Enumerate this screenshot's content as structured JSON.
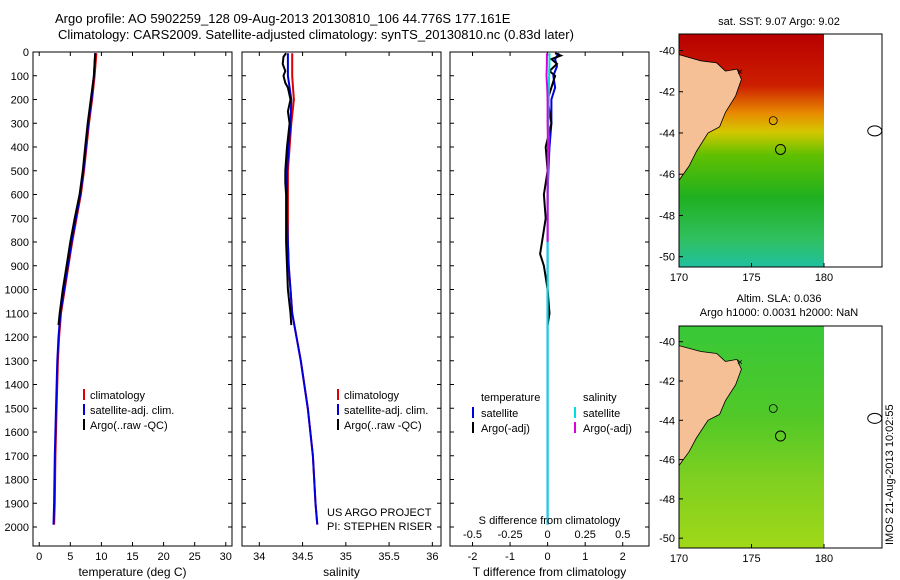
{
  "header": {
    "line1": "Argo profile: AO 5902259_128 09-Aug-2013 20130810_106 44.776S 177.161E",
    "line2": "Climatology: CARS2009. Satellite-adjusted climatology: synTS_20130810.nc (0.83d later)"
  },
  "colors": {
    "climatology": "#dd0000",
    "satellite": "#0000dd",
    "argo": "#000000",
    "sat_salinity": "#00dddd",
    "argo_salinity": "#dd00dd",
    "land": "#f5c096"
  },
  "credits": {
    "project": "US ARGO PROJECT",
    "pi": "PI: STEPHEN RISER",
    "timestamp": "IMOS 21-Aug-2013 10:02:55"
  },
  "chart_data": [
    {
      "type": "line",
      "xlabel": "temperature (deg C)",
      "ylabel": "",
      "xlim": [
        -1,
        31
      ],
      "ylim": [
        2080,
        0
      ],
      "xticks": [
        "0",
        "5",
        "10",
        "15",
        "20",
        "25",
        "30"
      ],
      "yticks": [
        "0",
        "100",
        "200",
        "300",
        "400",
        "500",
        "600",
        "700",
        "800",
        "900",
        "1000",
        "1100",
        "1200",
        "1300",
        "1400",
        "1500",
        "1600",
        "1700",
        "1800",
        "1900",
        "2000"
      ],
      "legend": [
        "climatology",
        "satellite-adj. clim.",
        "Argo(..raw -QC)"
      ],
      "series": [
        {
          "name": "climatology",
          "depth": [
            5,
            100,
            200,
            300,
            400,
            500,
            600,
            700,
            800,
            900,
            1000,
            1100,
            1200,
            1300,
            1500,
            1700,
            1900,
            1990
          ],
          "values": [
            9.2,
            8.9,
            8.5,
            8.0,
            7.6,
            7.2,
            6.7,
            6.0,
            5.3,
            4.7,
            4.1,
            3.5,
            3.2,
            3.0,
            2.8,
            2.6,
            2.5,
            2.4
          ]
        },
        {
          "name": "satellite-adj. clim.",
          "depth": [
            5,
            100,
            200,
            300,
            400,
            500,
            600,
            700,
            800,
            900,
            1000,
            1100,
            1200,
            1300,
            1500,
            1700,
            1900,
            1990
          ],
          "values": [
            9.0,
            8.8,
            8.4,
            7.9,
            7.5,
            7.1,
            6.6,
            5.9,
            5.2,
            4.6,
            4.0,
            3.4,
            3.1,
            2.9,
            2.7,
            2.5,
            2.4,
            2.3
          ]
        },
        {
          "name": "Argo(..raw -QC)",
          "depth": [
            5,
            100,
            200,
            300,
            400,
            500,
            600,
            700,
            800,
            900,
            1000,
            1100,
            1150
          ],
          "values": [
            9.0,
            8.8,
            8.3,
            7.8,
            7.4,
            7.0,
            6.5,
            5.7,
            5.0,
            4.4,
            3.8,
            3.3,
            3.1
          ]
        }
      ]
    },
    {
      "type": "line",
      "xlabel": "salinity",
      "xlim": [
        33.8,
        36.1
      ],
      "ylim": [
        2080,
        0
      ],
      "xticks": [
        "34",
        "34.5",
        "35",
        "35.5",
        "36"
      ],
      "legend": [
        "climatology",
        "satellite-adj. clim.",
        "Argo(..raw -QC)"
      ],
      "series": [
        {
          "name": "climatology",
          "depth": [
            5,
            50,
            100,
            150,
            200,
            300,
            400,
            500,
            600,
            700,
            800,
            900,
            1000,
            1100,
            1200,
            1300,
            1500,
            1700,
            1900,
            1990
          ],
          "values": [
            34.38,
            34.38,
            34.38,
            34.39,
            34.4,
            34.37,
            34.35,
            34.33,
            34.33,
            34.33,
            34.33,
            34.34,
            34.36,
            34.38,
            34.43,
            34.48,
            34.56,
            34.62,
            34.65,
            34.67
          ]
        },
        {
          "name": "satellite-adj. clim.",
          "depth": [
            5,
            50,
            100,
            150,
            200,
            300,
            400,
            500,
            600,
            700,
            800,
            900,
            1000,
            1100,
            1200,
            1300,
            1500,
            1700,
            1900,
            1990
          ],
          "values": [
            34.33,
            34.33,
            34.33,
            34.35,
            34.37,
            34.36,
            34.34,
            34.32,
            34.32,
            34.32,
            34.33,
            34.34,
            34.36,
            34.38,
            34.43,
            34.48,
            34.56,
            34.62,
            34.65,
            34.67
          ]
        },
        {
          "name": "Argo(..raw -QC)",
          "depth": [
            5,
            20,
            50,
            80,
            100,
            130,
            150,
            200,
            250,
            300,
            400,
            500,
            550,
            600,
            700,
            800,
            900,
            1000,
            1100,
            1150
          ],
          "values": [
            34.31,
            34.28,
            34.27,
            34.3,
            34.28,
            34.3,
            34.33,
            34.36,
            34.33,
            34.35,
            34.32,
            34.3,
            34.3,
            34.31,
            34.31,
            34.31,
            34.32,
            34.33,
            34.36,
            34.37
          ]
        }
      ]
    },
    {
      "type": "line",
      "xlabel": "T difference from climatology",
      "xlabel_top": "S difference from climatology",
      "xlim": [
        -2.6,
        2.7
      ],
      "ylim": [
        2080,
        0
      ],
      "xticks": [
        "-2",
        "-1",
        "0",
        "1",
        "2"
      ],
      "xticks_top": [
        "-0.5",
        "-0.25",
        "0",
        "0.25",
        "0.5"
      ],
      "legend_headers": [
        "temperature",
        "salinity"
      ],
      "legend": [
        "satellite",
        "Argo(-adj)",
        "satellite",
        "Argo(-adj)"
      ],
      "series": [
        {
          "name": "satellite",
          "depth": [
            5,
            30,
            60,
            100,
            150,
            200,
            300,
            400,
            500,
            600,
            800,
            1000,
            1300,
            1600,
            1990
          ],
          "values": [
            0.3,
            0.2,
            0.25,
            0.15,
            0.2,
            0.1,
            0.1,
            0.05,
            0.02,
            0.0,
            0.0,
            0.0,
            0.0,
            0.0,
            0.0
          ]
        },
        {
          "name": "Argo(-adj)",
          "depth": [
            5,
            15,
            30,
            50,
            80,
            100,
            150,
            200,
            300,
            400,
            500,
            600,
            700,
            800,
            850,
            900,
            1000,
            1100,
            1150
          ],
          "values": [
            0.2,
            0.35,
            0.1,
            0.25,
            0.05,
            0.2,
            0.1,
            0.0,
            0.1,
            -0.05,
            0.0,
            -0.1,
            -0.05,
            -0.15,
            -0.2,
            -0.1,
            0.0,
            0.05,
            0.0
          ]
        },
        {
          "name": "satellite",
          "depth": [
            5,
            50,
            100,
            200,
            300,
            400,
            500,
            700,
            900,
            1200,
            1500,
            1990
          ],
          "values": [
            0.05,
            0.05,
            0.04,
            0.03,
            0.02,
            0.02,
            0.01,
            0.0,
            0.0,
            0.0,
            0.0,
            0.0
          ]
        },
        {
          "name": "Argo(-adj)",
          "depth": [
            5,
            50,
            100,
            150,
            200,
            300,
            400,
            500,
            600,
            700,
            800
          ],
          "values": [
            -0.02,
            -0.02,
            -0.03,
            -0.01,
            0.0,
            0.0,
            0.01,
            0.0,
            0.0,
            0.0,
            0.0
          ]
        }
      ]
    },
    {
      "type": "heatmap",
      "title": "sat. SST: 9.07 Argo: 9.02",
      "xlim": [
        170,
        184
      ],
      "ylim": [
        -50.5,
        -39.2
      ],
      "xticks": [
        "170",
        "175",
        "180"
      ],
      "yticks": [
        "-40",
        "-42",
        "-44",
        "-46",
        "-48",
        "-50"
      ],
      "data_xlim": [
        170,
        180
      ],
      "profile_position": [
        177.161,
        -44.776
      ]
    },
    {
      "type": "heatmap",
      "title_lines": [
        "Altim. SLA: 0.036",
        "Argo h1000: 0.0031 h2000: NaN"
      ],
      "xlim": [
        170,
        184
      ],
      "ylim": [
        -50.5,
        -39.2
      ],
      "xticks": [
        "170",
        "175",
        "180"
      ],
      "yticks": [
        "-40",
        "-42",
        "-44",
        "-46",
        "-48",
        "-50"
      ],
      "data_xlim": [
        170,
        180
      ],
      "profile_position": [
        177.161,
        -44.776
      ]
    }
  ]
}
